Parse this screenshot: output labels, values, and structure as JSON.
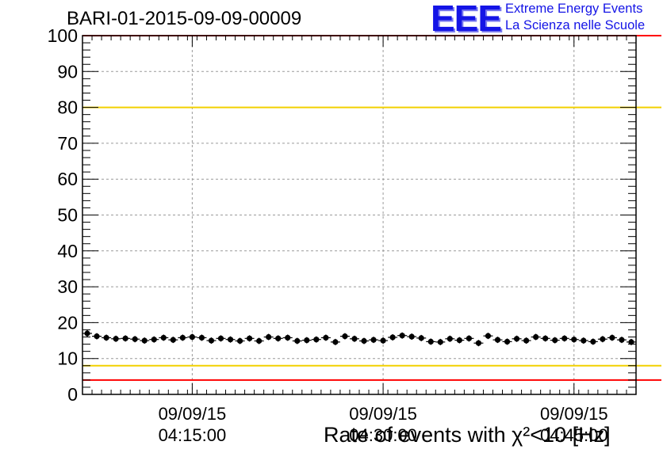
{
  "header": {
    "title": "BARI-01-2015-09-09-00009",
    "logo_text": "EEE",
    "logo_line1": "Extreme Energy Events",
    "logo_line2": "La Scienza nelle Scuole"
  },
  "colors": {
    "logo": "#1414e6",
    "red_limit": "#ff0000",
    "yellow_limit": "#f2d000",
    "grid": "#9a9a9a",
    "marker": "#000000"
  },
  "chart_data": {
    "type": "scatter",
    "title": "BARI-01-2015-09-09-00009",
    "xlabel": "Rate of events with χ²<10 [Hz]",
    "ylabel": "",
    "ylim": [
      0,
      100
    ],
    "xlim": [
      0,
      58
    ],
    "grid": true,
    "y_ticks": [
      "0",
      "10",
      "20",
      "30",
      "40",
      "50",
      "60",
      "70",
      "80",
      "90",
      "100"
    ],
    "x_ticks": [
      {
        "x": 11.5,
        "date": "09/09/15",
        "time": "04:15:00"
      },
      {
        "x": 31.5,
        "date": "09/09/15",
        "time": "04:30:00"
      },
      {
        "x": 51.5,
        "date": "09/09/15",
        "time": "04:45:00"
      }
    ],
    "limit_lines": [
      {
        "y": 100,
        "color": "red"
      },
      {
        "y": 4,
        "color": "red"
      },
      {
        "y": 80,
        "color": "yellow"
      },
      {
        "y": 8,
        "color": "yellow"
      }
    ],
    "series": [
      {
        "x": [
          0.5,
          1.5,
          2.5,
          3.5,
          4.5,
          5.5,
          6.5,
          7.5,
          8.5,
          9.5,
          10.5,
          11.5,
          12.5,
          13.5,
          14.5,
          15.5,
          16.5,
          17.5,
          18.5,
          19.5,
          20.5,
          21.5,
          22.5,
          23.5,
          24.5,
          25.5,
          26.5,
          27.5,
          28.5,
          29.5,
          30.5,
          31.5,
          32.5,
          33.5,
          34.5,
          35.5,
          36.5,
          37.5,
          38.5,
          39.5,
          40.5,
          41.5,
          42.5,
          43.5,
          44.5,
          45.5,
          46.5,
          47.5,
          48.5,
          49.5,
          50.5,
          51.5,
          52.5,
          53.5,
          54.5,
          55.5,
          56.5,
          57.5
        ],
        "values": [
          17.0,
          16.2,
          15.8,
          15.5,
          15.6,
          15.4,
          15.0,
          15.3,
          15.8,
          15.2,
          15.8,
          16.0,
          15.8,
          15.0,
          15.6,
          15.3,
          14.9,
          15.6,
          14.9,
          16.0,
          15.6,
          15.8,
          14.9,
          15.1,
          15.3,
          15.8,
          14.6,
          16.2,
          15.5,
          14.9,
          15.2,
          15.0,
          15.9,
          16.4,
          16.1,
          15.7,
          14.7,
          14.6,
          15.5,
          15.1,
          15.6,
          14.3,
          16.3,
          15.2,
          14.7,
          15.5,
          15.0,
          16.0,
          15.6,
          15.1,
          15.6,
          15.3,
          15.0,
          14.7,
          15.4,
          15.8,
          15.2,
          14.6
        ]
      }
    ]
  }
}
